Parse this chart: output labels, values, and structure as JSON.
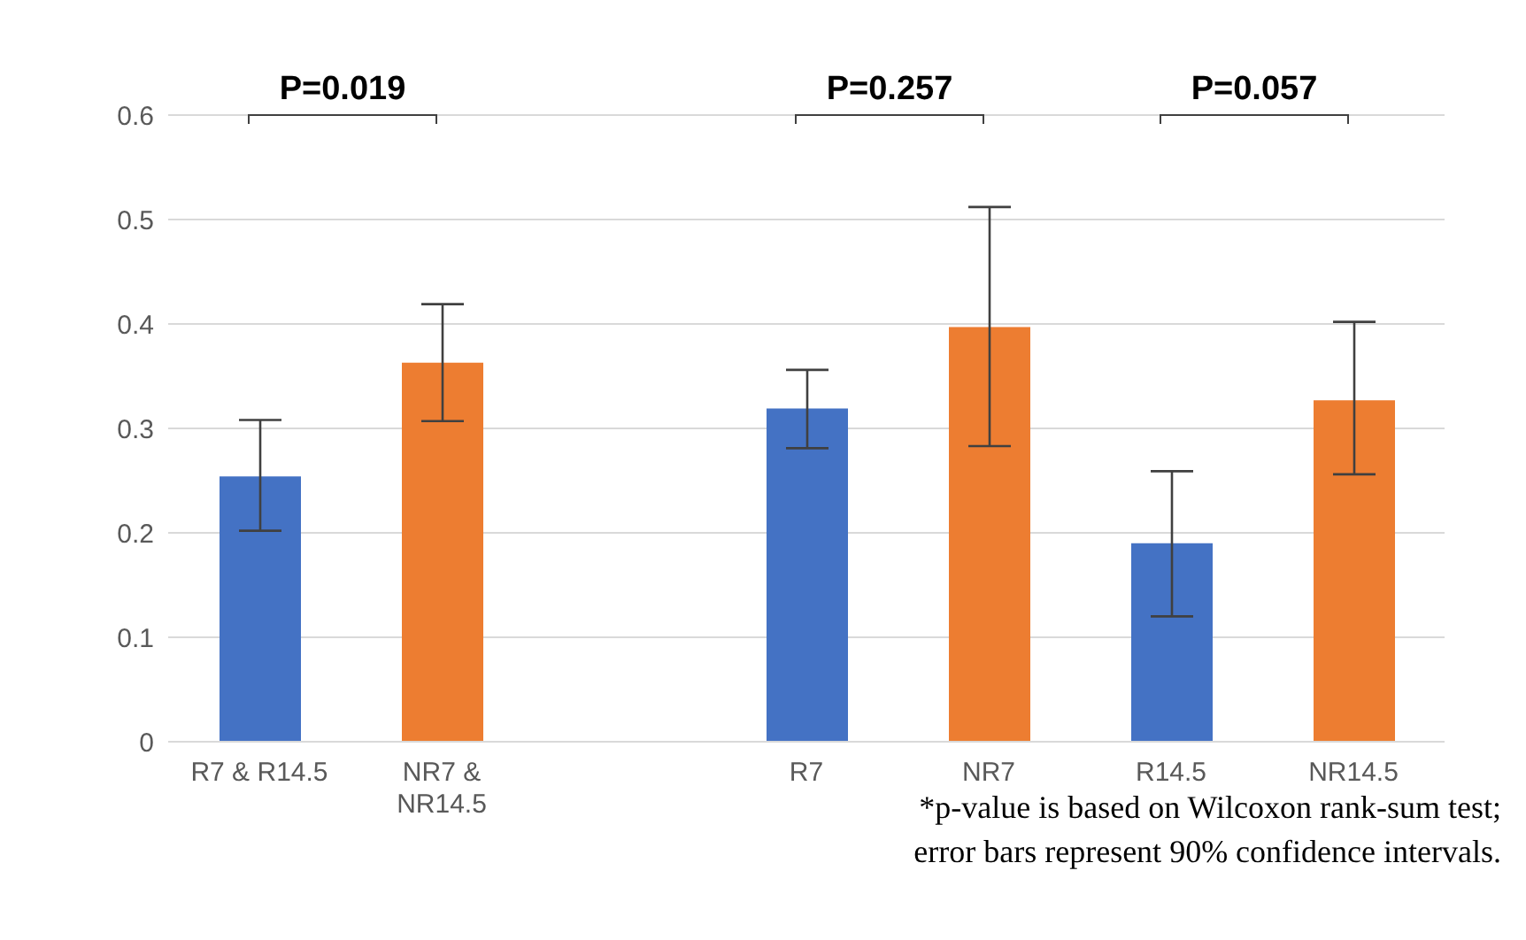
{
  "chart_data": {
    "type": "bar",
    "categories": [
      "R7 & R14.5",
      "NR7 & NR14.5",
      null,
      "R7",
      "NR7",
      "R14.5",
      "NR14.5"
    ],
    "values": [
      0.254,
      0.363,
      null,
      0.319,
      0.397,
      0.19,
      0.327
    ],
    "colors": [
      "#4472c4",
      "#ed7d31",
      null,
      "#4472c4",
      "#ed7d31",
      "#4472c4",
      "#ed7d31"
    ],
    "errors": [
      [
        0.202,
        0.308
      ],
      [
        0.307,
        0.419
      ],
      null,
      [
        0.281,
        0.356
      ],
      [
        0.283,
        0.512
      ],
      [
        0.12,
        0.259
      ],
      [
        0.256,
        0.402
      ]
    ],
    "ylim": [
      0,
      0.6
    ],
    "yticks": [
      0,
      0.1,
      0.2,
      0.3,
      0.4,
      0.5,
      0.6
    ],
    "grid": "y",
    "legend": false,
    "annotations": [
      "P=0.019",
      "P=0.257",
      "P=0.057",
      "*p-value is based on Wilcoxon rank-sum test;",
      "error bars represent 90% confidence intervals."
    ]
  }
}
